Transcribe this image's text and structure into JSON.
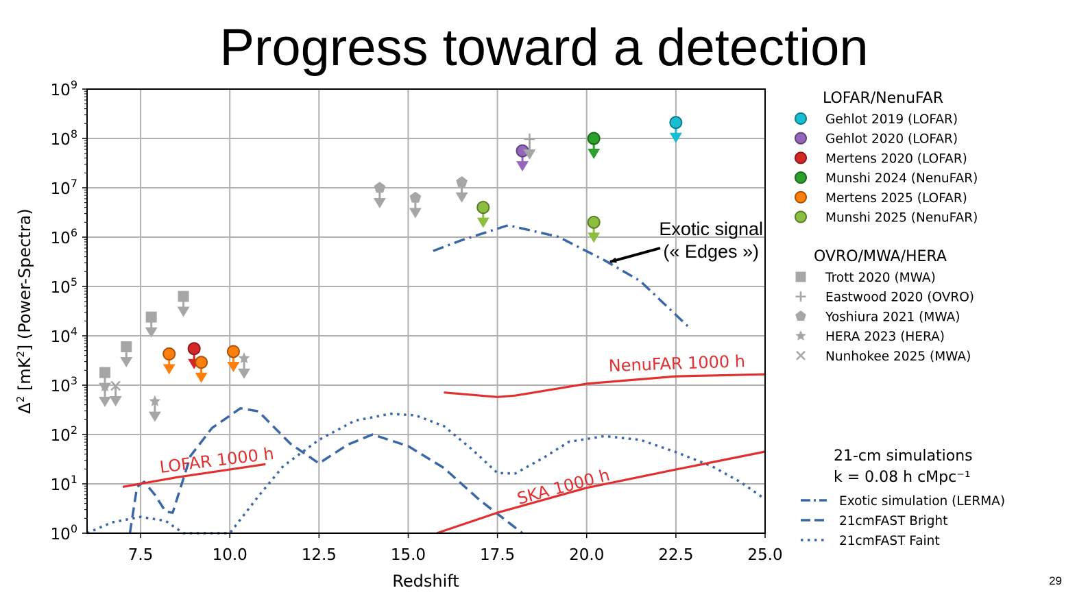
{
  "slide": {
    "title": "Progress toward a detection",
    "page_number": "29"
  },
  "colors": {
    "sim_blue": "#3a67a8",
    "sensitivity_red": "#e03030",
    "gray_marker": "#a6a6a6",
    "grid": "#b0b0b0"
  },
  "chart_data": {
    "type": "scatter",
    "title": "",
    "xlabel": "Redshift",
    "ylabel": "Δ² [mK²] (Power-Spectra)",
    "xscale": "linear",
    "yscale": "log",
    "xlim": [
      6.0,
      25.0
    ],
    "ylim": [
      1,
      1000000000
    ],
    "xticks": [
      7.5,
      10.0,
      12.5,
      15.0,
      17.5,
      20.0,
      22.5,
      25.0
    ],
    "xtick_labels": [
      "7.5",
      "10.0",
      "12.5",
      "15.0",
      "17.5",
      "20.0",
      "22.5",
      "25.0"
    ],
    "yticks_exp": [
      0,
      1,
      2,
      3,
      4,
      5,
      6,
      7,
      8,
      9
    ],
    "grid": true,
    "legend_groups": [
      {
        "title": "LOFAR/NenuFAR",
        "placement": "right-top",
        "entries": [
          {
            "name": "Gehlot 2019 (LOFAR)",
            "marker": "circle",
            "color": "#17becf"
          },
          {
            "name": "Gehlot 2020 (LOFAR)",
            "marker": "circle",
            "color": "#9467bd"
          },
          {
            "name": "Mertens 2020 (LOFAR)",
            "marker": "circle",
            "color": "#d62728"
          },
          {
            "name": "Munshi 2024 (NenuFAR)",
            "marker": "circle",
            "color": "#2ca02c"
          },
          {
            "name": "Mertens 2025 (LOFAR)",
            "marker": "circle",
            "color": "#ff7f0e"
          },
          {
            "name": "Munshi 2025 (NenuFAR)",
            "marker": "circle",
            "color": "#8cbf3f"
          }
        ]
      },
      {
        "title": "OVRO/MWA/HERA",
        "placement": "right-middle",
        "entries": [
          {
            "name": "Trott 2020 (MWA)",
            "marker": "square",
            "color": "#a6a6a6"
          },
          {
            "name": "Eastwood 2020 (OVRO)",
            "marker": "plus",
            "color": "#a6a6a6"
          },
          {
            "name": "Yoshiura 2021 (MWA)",
            "marker": "pentagon",
            "color": "#a6a6a6"
          },
          {
            "name": "HERA 2023 (HERA)",
            "marker": "star",
            "color": "#a6a6a6"
          },
          {
            "name": "Nunhokee 2025 (MWA)",
            "marker": "x",
            "color": "#a6a6a6"
          }
        ]
      },
      {
        "title": "21-cm simulations",
        "subtitle": "k = 0.08 h cMpc⁻¹",
        "placement": "right-bottom",
        "entries": [
          {
            "name": "Exotic simulation (LERMA)",
            "style": "dashdot",
            "color": "#3a67a8"
          },
          {
            "name": "21cmFAST Bright",
            "style": "dashed",
            "color": "#3a67a8"
          },
          {
            "name": "21cmFAST Faint",
            "style": "dotted",
            "color": "#3a67a8"
          }
        ]
      }
    ],
    "upper_limits": [
      {
        "series": "Gehlot 2019 (LOFAR)",
        "points": [
          [
            22.5,
            210000000
          ]
        ]
      },
      {
        "series": "Gehlot 2020 (LOFAR)",
        "points": [
          [
            18.2,
            56000000
          ]
        ]
      },
      {
        "series": "Mertens 2020 (LOFAR)",
        "points": [
          [
            9.0,
            5500
          ]
        ]
      },
      {
        "series": "Munshi 2024 (NenuFAR)",
        "points": [
          [
            20.2,
            100000000
          ]
        ]
      },
      {
        "series": "Mertens 2025 (LOFAR)",
        "points": [
          [
            8.3,
            4300
          ],
          [
            9.2,
            2900
          ],
          [
            10.1,
            4800
          ]
        ]
      },
      {
        "series": "Munshi 2025 (NenuFAR)",
        "points": [
          [
            17.1,
            4000000
          ],
          [
            20.2,
            2000000
          ]
        ]
      },
      {
        "series": "Trott 2020 (MWA)",
        "points": [
          [
            6.5,
            1800
          ],
          [
            7.1,
            6000
          ],
          [
            7.8,
            24000
          ],
          [
            8.7,
            63000
          ]
        ]
      },
      {
        "series": "Eastwood 2020 (OVRO)",
        "points": [
          [
            18.4,
            97000000
          ]
        ]
      },
      {
        "series": "Yoshiura 2021 (MWA)",
        "points": [
          [
            14.2,
            10000000
          ],
          [
            15.2,
            6300000
          ],
          [
            16.5,
            13000000
          ]
        ]
      },
      {
        "series": "HERA 2023 (HERA)",
        "points": [
          [
            6.5,
            940
          ],
          [
            7.9,
            470
          ],
          [
            10.4,
            3500
          ]
        ]
      },
      {
        "series": "Nunhokee 2025 (MWA)",
        "points": [
          [
            6.8,
            970
          ]
        ]
      }
    ],
    "curves": [
      {
        "name": "Exotic simulation (LERMA)",
        "style": "dashdot",
        "x": [
          15.7,
          16.5,
          17.8,
          19.2,
          20.5,
          21.5,
          22.9
        ],
        "y": [
          525000,
          870000,
          1740000,
          1020000,
          339000,
          129000,
          14100
        ]
      },
      {
        "name": "21cmFAST Bright",
        "style": "dashed",
        "x": [
          7.2,
          7.4,
          7.6,
          7.9,
          8.2,
          8.4,
          8.9,
          9.5,
          10.3,
          10.8,
          11.7,
          12.5,
          13.3,
          14.0,
          15.0,
          16.0,
          17.0,
          18.2
        ],
        "y": [
          1.0,
          8.7,
          11.0,
          6.0,
          2.75,
          2.6,
          37,
          135,
          340,
          295,
          65,
          26,
          62,
          100,
          58,
          21,
          4.7,
          1.0
        ]
      },
      {
        "name": "21cmFAST Faint",
        "style": "dotted",
        "x": [
          6.0,
          6.7,
          7.5,
          8.2,
          8.7,
          10.0,
          10.8,
          11.5,
          12.5,
          13.5,
          14.5,
          15.2,
          16.0,
          16.8,
          17.5,
          18.0,
          18.8,
          19.5,
          20.5,
          21.5,
          22.5,
          23.5,
          24.3,
          25.0
        ],
        "y": [
          1.0,
          1.66,
          2.14,
          1.78,
          1.0,
          1.0,
          5.6,
          23,
          78,
          190,
          263,
          245,
          148,
          49,
          16.6,
          16.2,
          34,
          71,
          93,
          78,
          44,
          23,
          11,
          4.9
        ]
      },
      {
        "name": "LOFAR 1000 h",
        "style": "solid",
        "label": "LOFAR 1000 h",
        "x": [
          7.0,
          8.5,
          10.0,
          11.0
        ],
        "y": [
          8.7,
          13.5,
          19.5,
          25
        ]
      },
      {
        "name": "NenuFAR 1000 h",
        "style": "solid",
        "label": "NenuFAR 1000 h",
        "x": [
          16.0,
          17.5,
          18.0,
          20.0,
          22.5,
          25.0
        ],
        "y": [
          710,
          575,
          615,
          1070,
          1510,
          1660
        ]
      },
      {
        "name": "SKA 1000 h",
        "style": "solid",
        "label": "SKA 1000 h",
        "x": [
          15.8,
          17.5,
          20.0,
          22.5,
          25.0
        ],
        "y": [
          1.0,
          2.6,
          8.3,
          19.5,
          45
        ]
      }
    ],
    "annotations": [
      {
        "text_line1": "Exotic signal",
        "text_line2": "(« Edges »)",
        "points_to": [
          20.6,
          300000
        ]
      }
    ]
  }
}
